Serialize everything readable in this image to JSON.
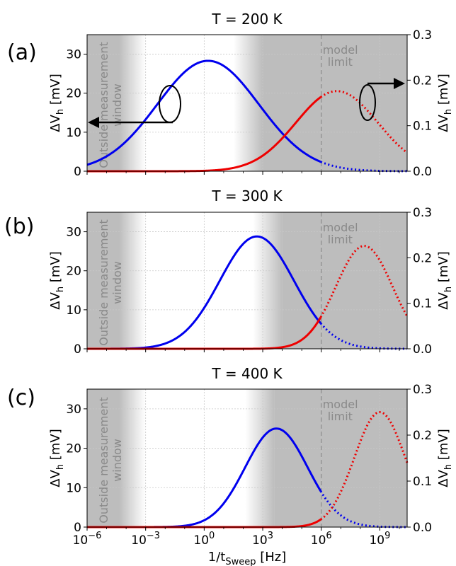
{
  "chart_data": [
    {
      "type": "line",
      "panel_label": "(a)",
      "title": "T = 200 K",
      "xlabel": "",
      "ylabel_left": "ΔV_h [mV]",
      "ylabel_right": "ΔV_h [mV]",
      "xscale": "log",
      "xlim": [
        -6,
        10.4
      ],
      "ylim_left": [
        0,
        35
      ],
      "ylim_right": [
        0,
        0.3
      ],
      "x_ticks": [
        "10^-6",
        "10^-3",
        "10^0",
        "10^3",
        "10^6",
        "10^9"
      ],
      "y_ticks_left": [
        "0",
        "10",
        "20",
        "30"
      ],
      "y_ticks_right": [
        "0.0",
        "0.1",
        "0.2",
        "0.3"
      ],
      "show_x_tick_labels": false,
      "shaded_left_label": "Outside measurement window",
      "model_limit_label": "model limit",
      "model_limit_log10": 6,
      "shade_left_end_log10": -3,
      "shade_left_fade_log10": -4.3,
      "shade_right_start_log10": 3,
      "shade_right_fade_log10": 1.5,
      "series": [
        {
          "name": "blue",
          "axis": "left",
          "color": "#0000ee",
          "shape": "gauss",
          "peak": 28.3,
          "center_log10": 0.2,
          "sigma": 2.6
        },
        {
          "name": "red",
          "axis": "right",
          "color": "#ee0000",
          "shape": "gauss",
          "peak": 0.176,
          "center_log10": 6.8,
          "sigma": 2.1
        }
      ],
      "annotations": {
        "ellipse_left_arrow": true,
        "ellipse_right_arrow": true
      }
    },
    {
      "type": "line",
      "panel_label": "(b)",
      "title": "T = 300 K",
      "xlabel": "",
      "ylabel_left": "ΔV_h [mV]",
      "ylabel_right": "ΔV_h [mV]",
      "xscale": "log",
      "xlim": [
        -6,
        10.4
      ],
      "ylim_left": [
        0,
        35
      ],
      "ylim_right": [
        0,
        0.3
      ],
      "x_ticks": [
        "10^-6",
        "10^-3",
        "10^0",
        "10^3",
        "10^6",
        "10^9"
      ],
      "y_ticks_left": [
        "0",
        "10",
        "20",
        "30"
      ],
      "y_ticks_right": [
        "0.0",
        "0.1",
        "0.2",
        "0.3"
      ],
      "show_x_tick_labels": false,
      "shaded_left_label": "Outside measurement window",
      "model_limit_label": "model limit",
      "model_limit_log10": 6,
      "shade_left_end_log10": -3,
      "shade_left_fade_log10": -4.3,
      "shade_right_start_log10": 4,
      "shade_right_fade_log10": 2.5,
      "series": [
        {
          "name": "blue",
          "axis": "left",
          "color": "#0000ee",
          "shape": "gauss",
          "peak": 28.8,
          "center_log10": 2.7,
          "sigma": 1.9
        },
        {
          "name": "red",
          "axis": "right",
          "color": "#ee0000",
          "shape": "gauss",
          "peak": 0.226,
          "center_log10": 8.2,
          "sigma": 1.45
        }
      ],
      "annotations": {
        "ellipse_left_arrow": false,
        "ellipse_right_arrow": false
      }
    },
    {
      "type": "line",
      "panel_label": "(c)",
      "title": "T = 400 K",
      "xlabel": "1/t_Sweep [Hz]",
      "ylabel_left": "ΔV_h [mV]",
      "ylabel_right": "ΔV_h [mV]",
      "xscale": "log",
      "xlim": [
        -6,
        10.4
      ],
      "ylim_left": [
        0,
        35
      ],
      "ylim_right": [
        0,
        0.3
      ],
      "x_ticks": [
        "10^-6",
        "10^-3",
        "10^0",
        "10^3",
        "10^6",
        "10^9"
      ],
      "y_ticks_left": [
        "0",
        "10",
        "20",
        "30"
      ],
      "y_ticks_right": [
        "0.0",
        "0.1",
        "0.2",
        "0.3"
      ],
      "show_x_tick_labels": true,
      "shaded_left_label": "Outside measurement window",
      "model_limit_label": "model limit",
      "model_limit_log10": 6,
      "shade_left_end_log10": -3,
      "shade_left_fade_log10": -4.3,
      "shade_right_start_log10": 3.6,
      "shade_right_fade_log10": 2.1,
      "series": [
        {
          "name": "blue",
          "axis": "left",
          "color": "#0000ee",
          "shape": "gauss",
          "peak": 25.0,
          "center_log10": 3.7,
          "sigma": 1.6
        },
        {
          "name": "red",
          "axis": "right",
          "color": "#ee0000",
          "shape": "gauss",
          "peak": 0.25,
          "center_log10": 9.0,
          "sigma": 1.3
        }
      ],
      "annotations": {
        "ellipse_left_arrow": false,
        "ellipse_right_arrow": false
      }
    }
  ]
}
